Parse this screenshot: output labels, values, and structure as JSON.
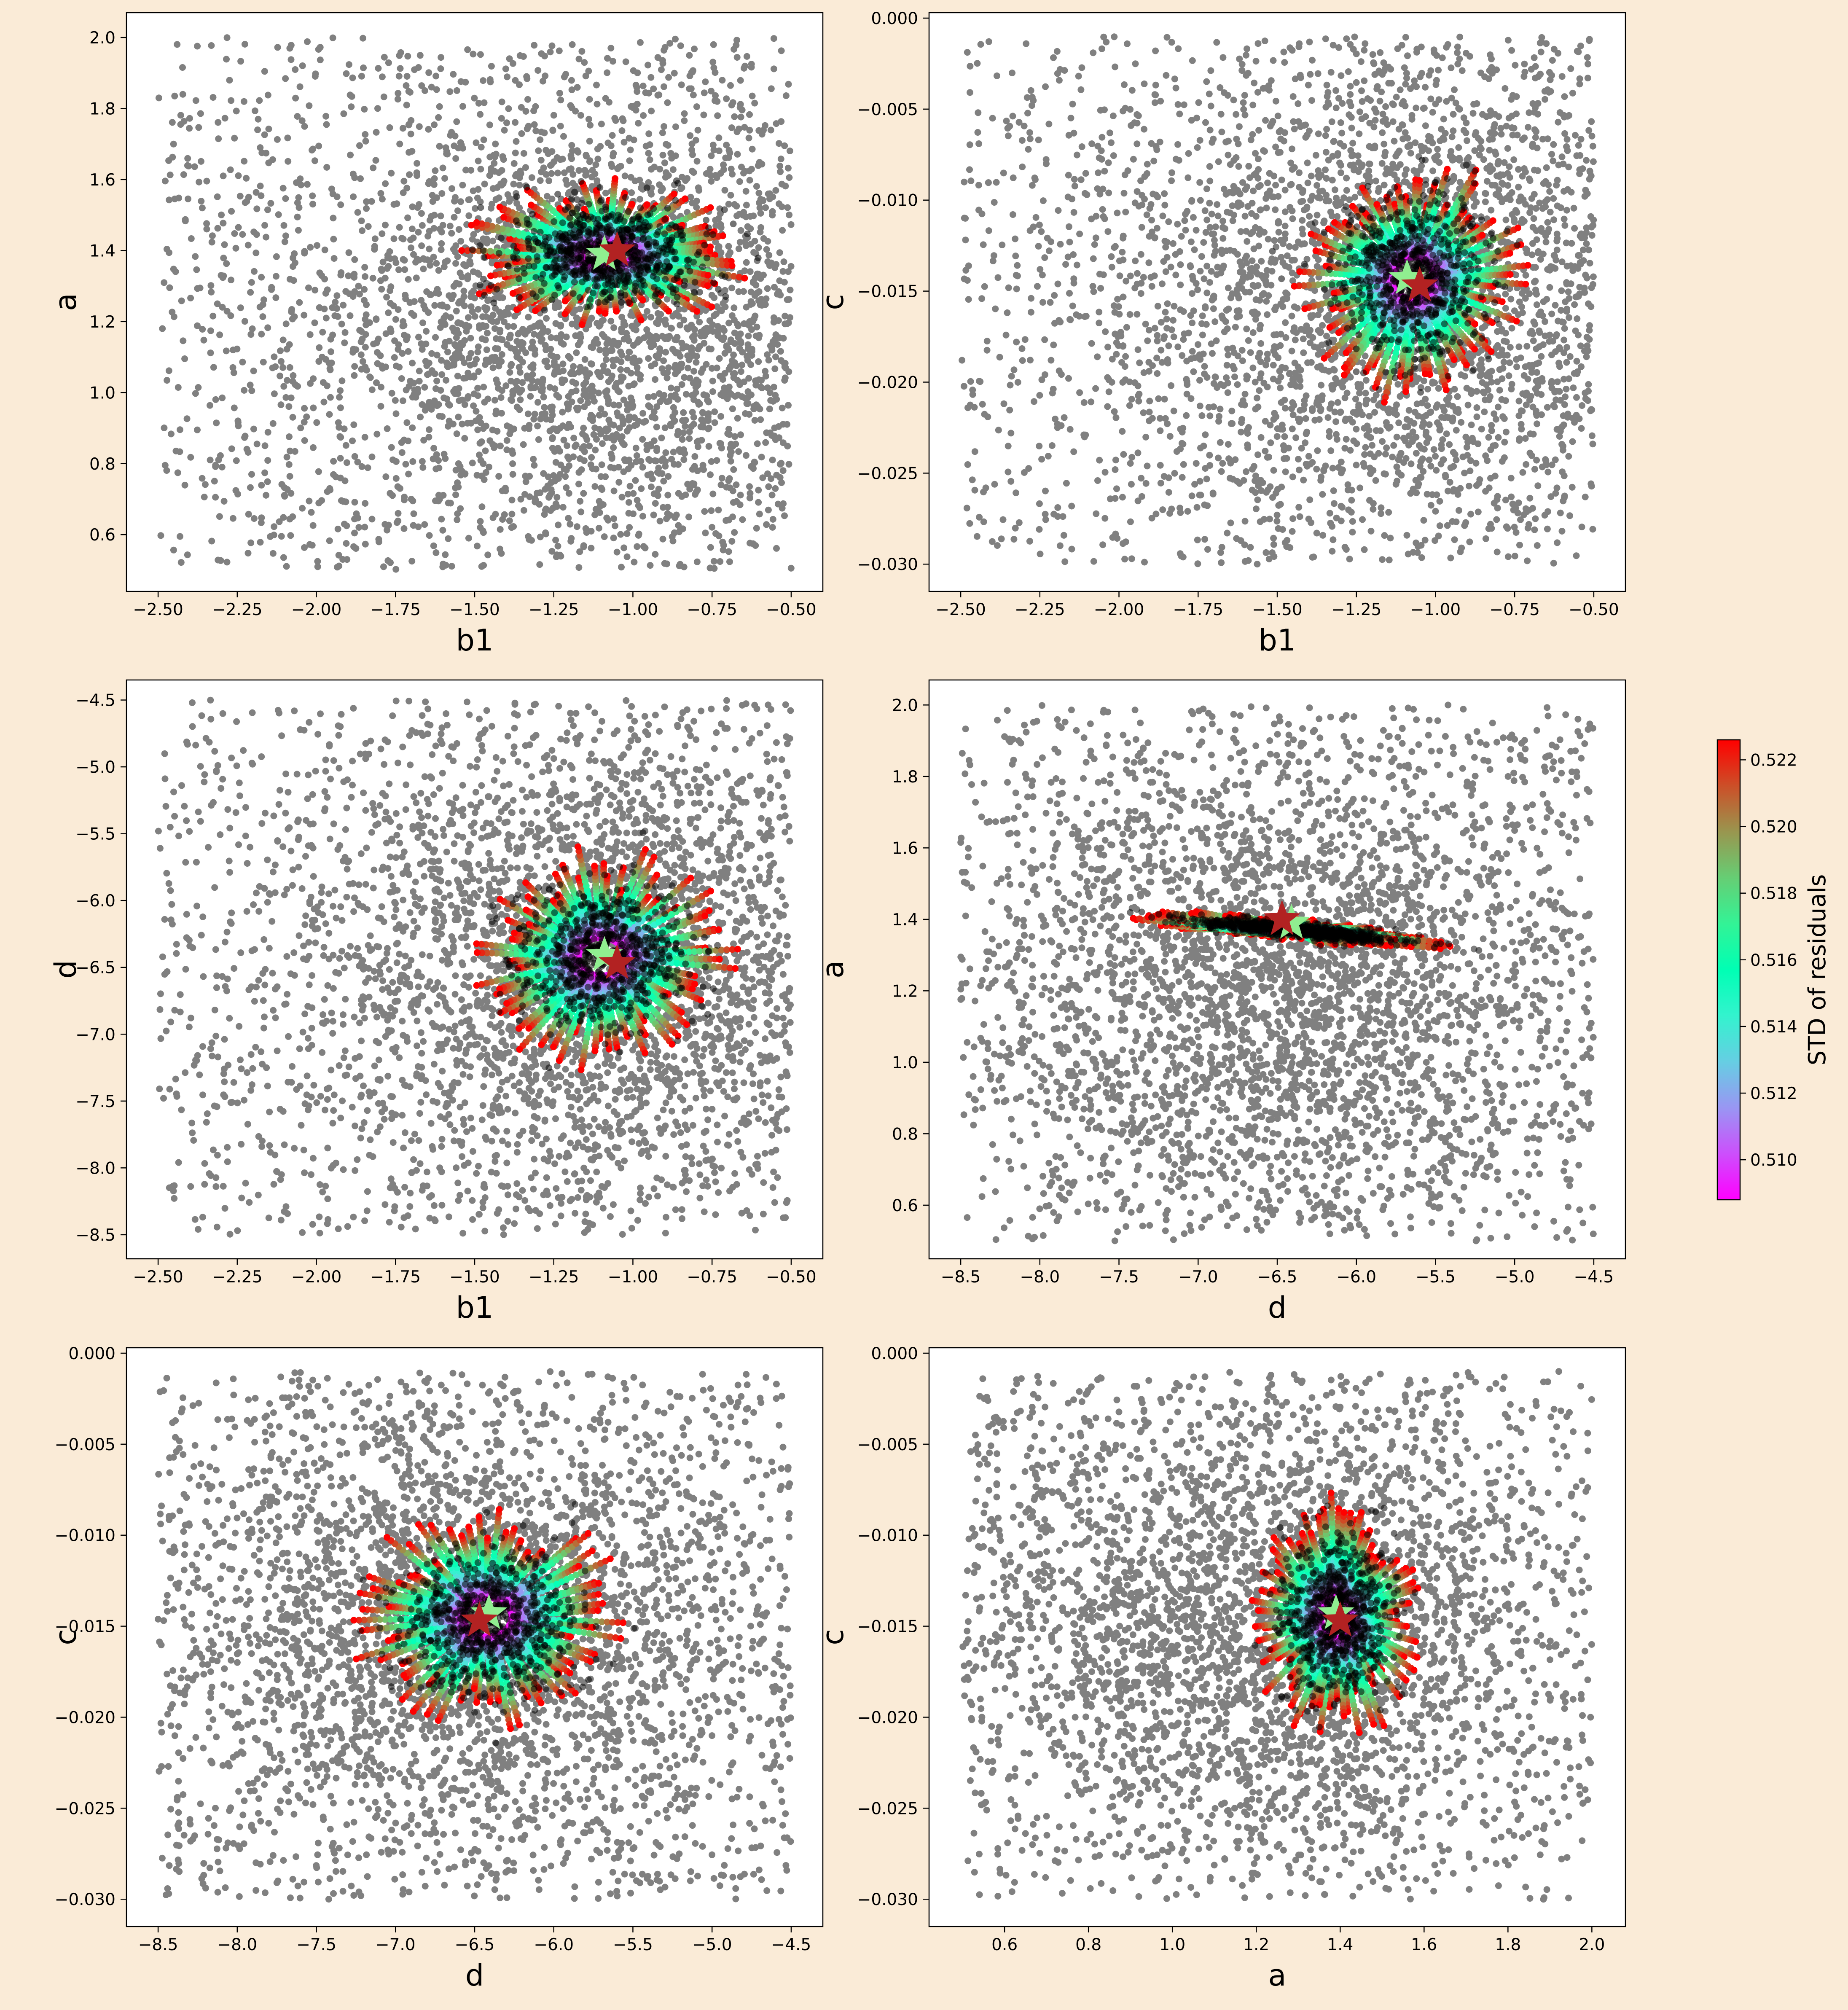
{
  "colors": {
    "figure_background": "#faebd7",
    "plot_background": "#ffffff",
    "sample_points": "#808080",
    "star_initial": "#90ee90",
    "star_best": "#b22222",
    "center_cluster": "#000000",
    "colormap": "rainbow"
  },
  "colorbar": {
    "label": "STD of residuals",
    "ticks": [
      "0.510",
      "0.512",
      "0.514",
      "0.516",
      "0.518",
      "0.520",
      "0.522"
    ],
    "range": [
      0.5088,
      0.5226
    ]
  },
  "chart_data": [
    {
      "type": "scatter",
      "xlabel": "b1",
      "ylabel": "a",
      "xlim": [
        -2.6,
        -0.4
      ],
      "ylim": [
        0.44,
        2.07
      ],
      "xticks": [
        -2.5,
        -2.25,
        -2.0,
        -1.75,
        -1.5,
        -1.25,
        -1.0,
        -0.75,
        -0.5
      ],
      "xtick_labels": [
        "−2.50",
        "−2.25",
        "−2.00",
        "−1.75",
        "−1.50",
        "−1.25",
        "−1.00",
        "−0.75",
        "−0.50"
      ],
      "yticks": [
        0.6,
        0.8,
        1.0,
        1.2,
        1.4,
        1.6,
        1.8,
        2.0
      ],
      "ytick_labels": [
        "0.6",
        "0.8",
        "1.0",
        "1.2",
        "1.4",
        "1.6",
        "1.8",
        "2.0"
      ],
      "cloud": {
        "center": [
          -1.1,
          1.2
        ],
        "extent": [
          -2.5,
          -0.5,
          0.5,
          2.0
        ]
      },
      "cluster": {
        "center": [
          -1.08,
          1.39
        ],
        "radius": [
          0.45,
          0.2
        ]
      },
      "star_initial": [
        -1.09,
        1.39
      ],
      "star_best": [
        -1.05,
        1.4
      ]
    },
    {
      "type": "scatter",
      "xlabel": "b1",
      "ylabel": "c",
      "xlim": [
        -2.6,
        -0.4
      ],
      "ylim": [
        -0.0315,
        0.0003
      ],
      "xticks": [
        -2.5,
        -2.25,
        -2.0,
        -1.75,
        -1.5,
        -1.25,
        -1.0,
        -0.75,
        -0.5
      ],
      "xtick_labels": [
        "−2.50",
        "−2.25",
        "−2.00",
        "−1.75",
        "−1.50",
        "−1.25",
        "−1.00",
        "−0.75",
        "−0.50"
      ],
      "yticks": [
        -0.03,
        -0.025,
        -0.02,
        -0.015,
        -0.01,
        -0.005,
        0.0
      ],
      "ytick_labels": [
        "−0.030",
        "−0.025",
        "−0.020",
        "−0.015",
        "−0.010",
        "−0.005",
        "0.000"
      ],
      "cloud": {
        "center": [
          -1.1,
          -0.015
        ],
        "extent": [
          -2.5,
          -0.5,
          -0.03,
          -0.001
        ]
      },
      "cluster": {
        "center": [
          -1.07,
          -0.0143
        ],
        "radius": [
          0.35,
          0.0065
        ]
      },
      "star_initial": [
        -1.09,
        -0.0143
      ],
      "star_best": [
        -1.05,
        -0.0147
      ]
    },
    {
      "type": "scatter",
      "xlabel": "b1",
      "ylabel": "d",
      "xlim": [
        -2.6,
        -0.4
      ],
      "ylim": [
        -8.68,
        -4.35
      ],
      "xticks": [
        -2.5,
        -2.25,
        -2.0,
        -1.75,
        -1.5,
        -1.25,
        -1.0,
        -0.75,
        -0.5
      ],
      "xtick_labels": [
        "−2.50",
        "−2.25",
        "−2.00",
        "−1.75",
        "−1.50",
        "−1.25",
        "−1.00",
        "−0.75",
        "−0.50"
      ],
      "yticks": [
        -8.5,
        -8.0,
        -7.5,
        -7.0,
        -6.5,
        -6.0,
        -5.5,
        -5.0,
        -4.5
      ],
      "ytick_labels": [
        "−8.5",
        "−8.0",
        "−7.5",
        "−7.0",
        "−6.5",
        "−6.0",
        "−5.5",
        "−5.0",
        "−4.5"
      ],
      "cloud": {
        "center": [
          -1.1,
          -6.5
        ],
        "extent": [
          -2.5,
          -0.5,
          -8.5,
          -4.5
        ]
      },
      "cluster": {
        "center": [
          -1.1,
          -6.42
        ],
        "radius": [
          0.4,
          0.8
        ]
      },
      "star_initial": [
        -1.09,
        -6.41
      ],
      "star_best": [
        -1.05,
        -6.47
      ]
    },
    {
      "type": "scatter",
      "xlabel": "d",
      "ylabel": "a",
      "xlim": [
        -8.7,
        -4.3
      ],
      "ylim": [
        0.45,
        2.07
      ],
      "xticks": [
        -8.5,
        -8.0,
        -7.5,
        -7.0,
        -6.5,
        -6.0,
        -5.5,
        -5.0,
        -4.5
      ],
      "xtick_labels": [
        "−8.5",
        "−8.0",
        "−7.5",
        "−7.0",
        "−6.5",
        "−6.0",
        "−5.5",
        "−5.0",
        "−4.5"
      ],
      "yticks": [
        0.6,
        0.8,
        1.0,
        1.2,
        1.4,
        1.6,
        1.8,
        2.0
      ],
      "ytick_labels": [
        "0.6",
        "0.8",
        "1.0",
        "1.2",
        "1.4",
        "1.6",
        "1.8",
        "2.0"
      ],
      "cloud": {
        "center": [
          -6.5,
          1.2
        ],
        "extent": [
          -8.5,
          -4.5,
          0.5,
          2.0
        ]
      },
      "cluster": {
        "center": [
          -6.4,
          1.37
        ],
        "radius": [
          1.0,
          0.09
        ]
      },
      "star_initial": [
        -6.41,
        1.39
      ],
      "star_best": [
        -6.47,
        1.4
      ]
    },
    {
      "type": "scatter",
      "xlabel": "d",
      "ylabel": "c",
      "xlim": [
        -8.7,
        -4.3
      ],
      "ylim": [
        -0.0315,
        0.0003
      ],
      "xticks": [
        -8.5,
        -8.0,
        -7.5,
        -7.0,
        -6.5,
        -6.0,
        -5.5,
        -5.0,
        -4.5
      ],
      "xtick_labels": [
        "−8.5",
        "−8.0",
        "−7.5",
        "−7.0",
        "−6.5",
        "−6.0",
        "−5.5",
        "−5.0",
        "−4.5"
      ],
      "yticks": [
        -0.03,
        -0.025,
        -0.02,
        -0.015,
        -0.01,
        -0.005,
        0.0
      ],
      "ytick_labels": [
        "−0.030",
        "−0.025",
        "−0.020",
        "−0.015",
        "−0.010",
        "−0.005",
        "0.000"
      ],
      "cloud": {
        "center": [
          -6.5,
          -0.015
        ],
        "extent": [
          -8.5,
          -4.5,
          -0.03,
          -0.001
        ]
      },
      "cluster": {
        "center": [
          -6.42,
          -0.0145
        ],
        "radius": [
          0.85,
          0.006
        ]
      },
      "star_initial": [
        -6.41,
        -0.0143
      ],
      "star_best": [
        -6.47,
        -0.0147
      ]
    },
    {
      "type": "scatter",
      "xlabel": "a",
      "ylabel": "c",
      "xlim": [
        0.42,
        2.08
      ],
      "ylim": [
        -0.0315,
        0.0003
      ],
      "xticks": [
        0.6,
        0.8,
        1.0,
        1.2,
        1.4,
        1.6,
        1.8,
        2.0
      ],
      "xtick_labels": [
        "0.6",
        "0.8",
        "1.0",
        "1.2",
        "1.4",
        "1.6",
        "1.8",
        "2.0"
      ],
      "yticks": [
        -0.03,
        -0.025,
        -0.02,
        -0.015,
        -0.01,
        -0.005,
        0.0
      ],
      "ytick_labels": [
        "−0.030",
        "−0.025",
        "−0.020",
        "−0.015",
        "−0.010",
        "−0.005",
        "0.000"
      ],
      "cloud": {
        "center": [
          1.2,
          -0.015
        ],
        "extent": [
          0.5,
          2.0,
          -0.03,
          -0.001
        ]
      },
      "cluster": {
        "center": [
          1.39,
          -0.0145
        ],
        "radius": [
          0.2,
          0.0065
        ]
      },
      "star_initial": [
        1.39,
        -0.0143
      ],
      "star_best": [
        1.4,
        -0.0147
      ]
    }
  ]
}
